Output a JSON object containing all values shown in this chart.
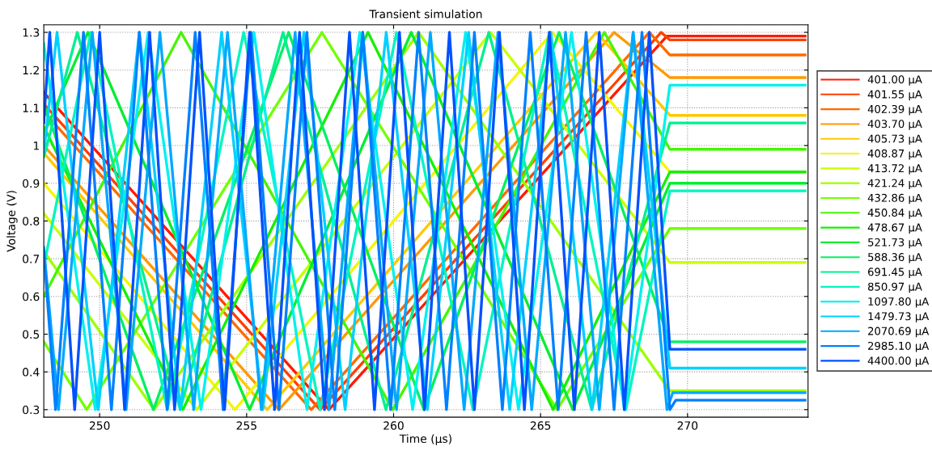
{
  "chart_data": {
    "type": "line",
    "title": "Transient simulation",
    "xlabel": "Time (µs)",
    "ylabel": "Voltage (V)",
    "xlim": [
      248.1,
      274.1
    ],
    "ylim": [
      0.28,
      1.32
    ],
    "xticks": [
      250,
      255,
      260,
      265,
      270
    ],
    "yticks": [
      0.3,
      0.4,
      0.5,
      0.6,
      0.7,
      0.8,
      0.9,
      1,
      1.1,
      1.2,
      1.3
    ],
    "grid": true,
    "legend": "right",
    "line_style": "solid",
    "marker": "none",
    "series": [
      {
        "name": "401.00 µA",
        "color": "#ff1a00",
        "x": [
          248.1,
          257.8,
          269.3,
          274
        ],
        "values": [
          1.14,
          0.3,
          1.29,
          1.29
        ]
      },
      {
        "name": "401.55 µA",
        "color": "#ff4000",
        "x": [
          248.1,
          257.5,
          269.1,
          269.4,
          274
        ],
        "values": [
          1.11,
          0.3,
          1.3,
          1.28,
          1.28
        ]
      },
      {
        "name": "402.39 µA",
        "color": "#ff6a00",
        "x": [
          248.1,
          257.2,
          268.7,
          269.4,
          274
        ],
        "values": [
          1.09,
          0.3,
          1.3,
          1.24,
          1.24
        ]
      },
      {
        "name": "403.70 µA",
        "color": "#ff9900",
        "x": [
          248.1,
          256.1,
          267.5,
          269.4,
          274
        ],
        "values": [
          1.0,
          0.3,
          1.3,
          1.18,
          1.18
        ]
      },
      {
        "name": "405.73 µA",
        "color": "#ffc800",
        "x": [
          248.1,
          255.7,
          266.9,
          269.4,
          274
        ],
        "values": [
          0.98,
          0.3,
          1.3,
          1.08,
          1.08
        ]
      },
      {
        "name": "408.87 µA",
        "color": "#f5f500",
        "x": [
          248.1,
          254.6,
          265.4,
          269.4,
          274
        ],
        "values": [
          0.9,
          0.3,
          1.3,
          0.93,
          0.93
        ]
      },
      {
        "name": "413.72 µA",
        "color": "#c8ff00",
        "x": [
          248.1,
          253.3,
          263.3,
          269.4,
          274
        ],
        "values": [
          0.82,
          0.3,
          1.3,
          0.69,
          0.69
        ]
      },
      {
        "name": "421.24 µA",
        "color": "#9cff00",
        "x": [
          248.1,
          251.85,
          260.85,
          269.4,
          274
        ],
        "values": [
          0.72,
          0.3,
          1.3,
          0.35,
          0.35
        ]
      },
      {
        "name": "432.86 µA",
        "color": "#70ff00",
        "x": [
          248.1,
          249.56,
          257.56,
          265.56,
          269.4,
          274
        ],
        "values": [
          0.48,
          0.3,
          1.3,
          0.3,
          0.78,
          0.78
        ]
      },
      {
        "name": "450.84 µA",
        "color": "#46f500",
        "x": [
          248.1,
          252.77,
          259.97,
          267.17,
          269.4,
          274
        ],
        "values": [
          0.6,
          1.3,
          0.3,
          1.3,
          0.99,
          0.99
        ]
      },
      {
        "name": "478.67 µA",
        "color": "#14f000",
        "x": [
          248.1,
          252.83,
          259.13,
          265.43,
          269.4,
          274
        ],
        "values": [
          1.05,
          0.3,
          1.3,
          0.3,
          0.93,
          0.93
        ]
      },
      {
        "name": "521.73 µA",
        "color": "#00ee30",
        "x": [
          248.1,
          249.6,
          255.1,
          260.6,
          266.1,
          269.4,
          274
        ],
        "values": [
          1.03,
          1.3,
          0.3,
          1.3,
          0.3,
          0.9,
          0.9
        ]
      },
      {
        "name": "588.36 µA",
        "color": "#00f060",
        "x": [
          248.1,
          251.83,
          256.43,
          261.03,
          265.63,
          269.4,
          274
        ],
        "values": [
          1.11,
          0.3,
          1.3,
          0.3,
          1.3,
          0.48,
          0.48
        ]
      },
      {
        "name": "691.45 µA",
        "color": "#00f090",
        "x": [
          248.1,
          249.24,
          252.74,
          256.24,
          259.74,
          263.24,
          266.74,
          269.4,
          274
        ],
        "values": [
          0.97,
          1.3,
          0.3,
          1.3,
          0.3,
          1.3,
          0.3,
          1.06,
          1.06
        ]
      },
      {
        "name": "850.97 µA",
        "color": "#00f5c0",
        "x": [
          248.1,
          249.7,
          252.3,
          254.9,
          257.5,
          260.1,
          262.7,
          265.3,
          267.9,
          269.4,
          274
        ],
        "values": [
          0.68,
          1.3,
          0.3,
          1.3,
          0.3,
          1.3,
          0.3,
          1.3,
          0.3,
          0.88,
          0.88
        ]
      },
      {
        "name": "1097.80 µA",
        "color": "#00f0f0",
        "x": [
          248.1,
          249.85,
          251.65,
          253.45,
          255.25,
          257.05,
          258.85,
          260.65,
          262.45,
          264.25,
          266.05,
          267.85,
          269.4,
          274
        ],
        "values": [
          1.27,
          0.3,
          1.3,
          0.3,
          1.3,
          0.3,
          1.3,
          0.3,
          1.3,
          0.3,
          1.3,
          0.3,
          1.16,
          1.16
        ]
      },
      {
        "name": "1479.73 µA",
        "color": "#00d0ff",
        "x": [
          248.1,
          248.55,
          249.95,
          251.35,
          252.75,
          254.15,
          255.55,
          256.95,
          258.35,
          259.75,
          261.15,
          262.55,
          263.95,
          265.35,
          266.75,
          268.15,
          269.4,
          274
        ],
        "values": [
          0.98,
          1.3,
          0.3,
          1.3,
          0.3,
          1.3,
          0.3,
          1.3,
          0.3,
          1.3,
          0.3,
          1.3,
          0.3,
          1.3,
          0.3,
          1.3,
          0.41,
          0.41
        ]
      },
      {
        "name": "2070.69 µA",
        "color": "#00a8ff",
        "x": [
          248.1,
          248.6,
          249.75,
          250.9,
          252.05,
          253.2,
          254.35,
          255.5,
          256.65,
          257.8,
          258.95,
          260.1,
          261.25,
          262.4,
          263.55,
          264.7,
          265.85,
          267.0,
          268.15,
          269.3,
          269.5,
          274
        ],
        "values": [
          0.73,
          0.3,
          1.3,
          0.3,
          1.3,
          0.3,
          1.3,
          0.3,
          1.3,
          0.3,
          1.3,
          0.3,
          1.3,
          0.3,
          1.3,
          0.3,
          1.3,
          0.3,
          1.3,
          0.3,
          0.345,
          0.345
        ]
      },
      {
        "name": "2985.10 µA",
        "color": "#0080ff",
        "x": [
          248.1,
          248.5,
          249.45,
          250.4,
          251.35,
          252.3,
          253.25,
          254.2,
          255.15,
          256.1,
          257.05,
          258.0,
          258.95,
          259.9,
          260.85,
          261.8,
          262.75,
          263.7,
          264.65,
          265.6,
          266.55,
          267.5,
          268.45,
          269.4,
          269.6,
          274
        ],
        "values": [
          0.72,
          0.3,
          1.3,
          0.3,
          1.3,
          0.3,
          1.3,
          0.3,
          1.3,
          0.3,
          1.3,
          0.3,
          1.3,
          0.3,
          1.3,
          0.3,
          1.3,
          0.3,
          1.3,
          0.3,
          1.3,
          0.3,
          1.3,
          0.3,
          0.325,
          0.325
        ]
      },
      {
        "name": "4400.00 µA",
        "color": "#0050ff",
        "x": [
          248.1,
          248.3,
          249.15,
          250.0,
          250.85,
          251.7,
          252.55,
          253.4,
          254.25,
          255.1,
          255.95,
          256.8,
          257.65,
          258.5,
          259.35,
          260.2,
          261.05,
          261.9,
          262.75,
          263.6,
          264.45,
          265.3,
          266.15,
          267.0,
          267.85,
          268.7,
          269.4,
          274
        ],
        "values": [
          1.06,
          1.3,
          0.3,
          1.3,
          0.3,
          1.3,
          0.3,
          1.3,
          0.3,
          1.3,
          0.3,
          1.3,
          0.3,
          1.3,
          0.3,
          1.3,
          0.3,
          1.3,
          0.3,
          1.3,
          0.3,
          1.3,
          0.3,
          1.3,
          0.3,
          1.3,
          0.46,
          0.46
        ]
      }
    ]
  }
}
